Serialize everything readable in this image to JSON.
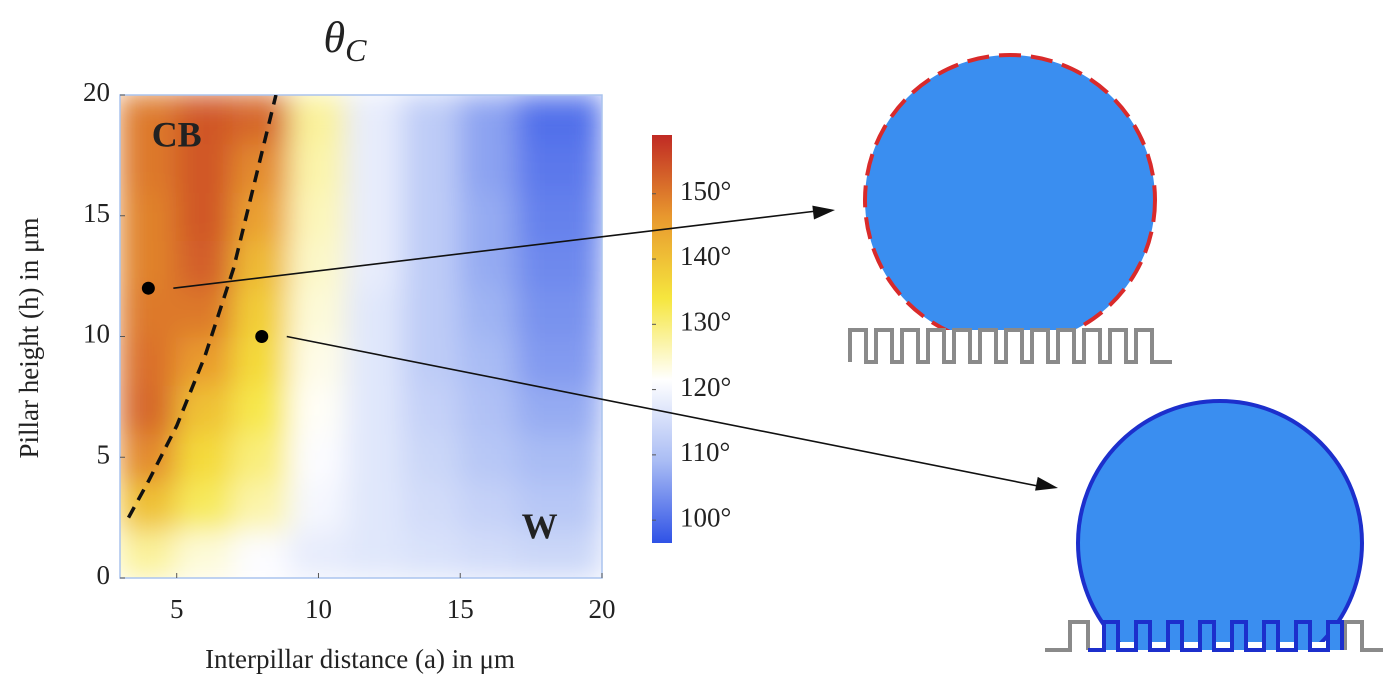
{
  "chart_data": {
    "type": "heatmap",
    "title": {
      "symbol": "θ",
      "subscript": "C"
    },
    "x_label": "Interpillar distance (a) in μm",
    "y_label": "Pillar height (h) in μm",
    "x": [
      4,
      6,
      8,
      10,
      12,
      14,
      16,
      18
    ],
    "y": [
      1,
      3,
      5,
      7,
      9,
      11,
      13,
      15,
      17,
      19
    ],
    "values": [
      [
        128,
        124,
        121,
        118,
        117,
        116,
        115,
        114
      ],
      [
        140,
        132,
        127,
        120,
        117,
        115,
        113,
        111
      ],
      [
        148,
        136,
        130,
        121,
        117,
        114,
        111,
        109
      ],
      [
        152,
        140,
        133,
        122,
        117,
        113,
        110,
        107
      ],
      [
        151,
        146,
        136,
        123,
        117,
        112,
        109,
        105
      ],
      [
        150,
        150,
        138,
        124,
        117,
        112,
        108,
        104
      ],
      [
        149,
        153,
        141,
        125,
        118,
        112,
        107,
        103
      ],
      [
        149,
        154,
        145,
        126,
        118,
        112,
        107,
        102
      ],
      [
        150,
        154,
        148,
        127,
        118,
        112,
        106,
        101
      ],
      [
        150,
        154,
        152,
        128,
        118,
        112,
        106,
        100
      ]
    ],
    "xlim": [
      3,
      20
    ],
    "ylim": [
      0,
      20
    ],
    "xticks": [
      5,
      10,
      15,
      20
    ],
    "yticks": [
      0,
      5,
      10,
      15,
      20
    ],
    "clim": [
      96.5,
      159
    ],
    "cticks": [
      {
        "value": 100,
        "label": "100°"
      },
      {
        "value": 110,
        "label": "110°"
      },
      {
        "value": 120,
        "label": "120°"
      },
      {
        "value": 130,
        "label": "130°"
      },
      {
        "value": 140,
        "label": "140°"
      },
      {
        "value": 150,
        "label": "150°"
      }
    ],
    "colors": [
      "#2f52e6",
      "#a9bcf4",
      "#ffffff",
      "#f6e63e",
      "#e8982e",
      "#c02a24"
    ],
    "boundary": {
      "x": [
        3.3,
        4,
        5,
        6,
        7,
        7.5,
        8,
        8.5
      ],
      "y": [
        2.5,
        4,
        6.3,
        9.2,
        12.8,
        15.2,
        17.6,
        20
      ]
    },
    "points": {
      "x": [
        4,
        8
      ],
      "y": [
        12,
        10
      ]
    },
    "annotations": [
      {
        "text": "CB",
        "x": 5,
        "y": 18.2
      },
      {
        "text": "W",
        "x": 17.8,
        "y": 2
      }
    ]
  }
}
